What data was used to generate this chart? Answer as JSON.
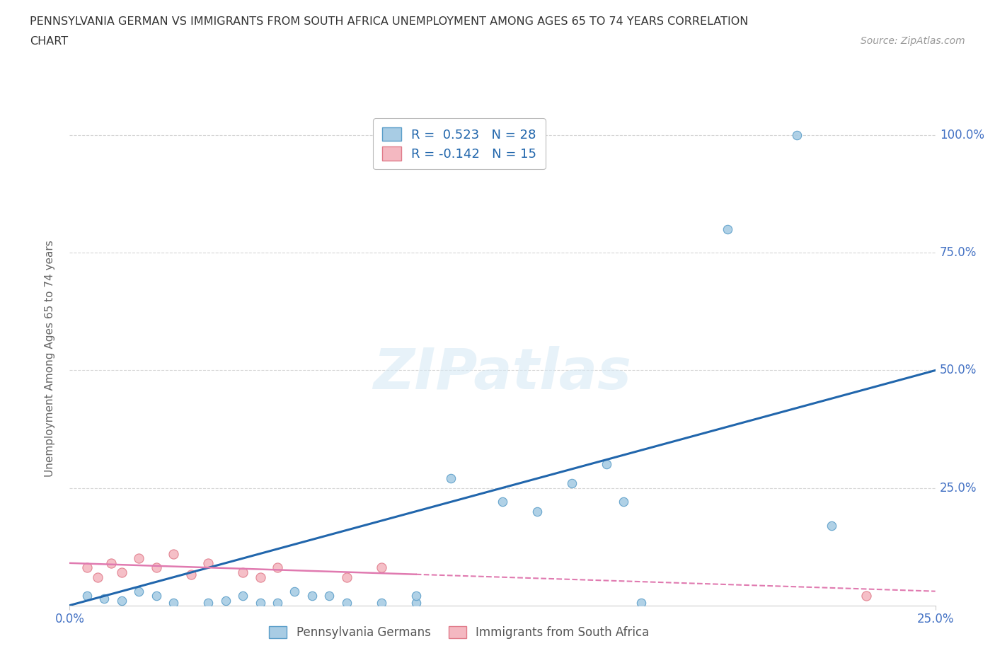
{
  "title_line1": "PENNSYLVANIA GERMAN VS IMMIGRANTS FROM SOUTH AFRICA UNEMPLOYMENT AMONG AGES 65 TO 74 YEARS CORRELATION",
  "title_line2": "CHART",
  "source": "Source: ZipAtlas.com",
  "ylabel": "Unemployment Among Ages 65 to 74 years",
  "xlim": [
    0.0,
    0.25
  ],
  "ylim": [
    0.0,
    1.05
  ],
  "ytick_labels": [
    "25.0%",
    "50.0%",
    "75.0%",
    "100.0%"
  ],
  "ytick_values": [
    0.25,
    0.5,
    0.75,
    1.0
  ],
  "watermark": "ZIPatlas",
  "legend_r1": "R =  0.523   N = 28",
  "legend_r2": "R = -0.142   N = 15",
  "blue_color": "#a8cce4",
  "blue_edge_color": "#5b9ec9",
  "pink_color": "#f4b8c1",
  "pink_edge_color": "#e07b8a",
  "blue_line_color": "#2166ac",
  "pink_line_color": "#e07ab0",
  "bg_color": "#ffffff",
  "grid_color": "#cccccc",
  "title_color": "#333333",
  "axis_tick_color": "#4472c4",
  "blue_points": [
    [
      0.005,
      0.02
    ],
    [
      0.01,
      0.015
    ],
    [
      0.015,
      0.01
    ],
    [
      0.02,
      0.03
    ],
    [
      0.025,
      0.02
    ],
    [
      0.03,
      0.005
    ],
    [
      0.04,
      0.005
    ],
    [
      0.045,
      0.01
    ],
    [
      0.05,
      0.02
    ],
    [
      0.055,
      0.005
    ],
    [
      0.06,
      0.005
    ],
    [
      0.065,
      0.03
    ],
    [
      0.07,
      0.02
    ],
    [
      0.075,
      0.02
    ],
    [
      0.08,
      0.005
    ],
    [
      0.09,
      0.005
    ],
    [
      0.1,
      0.005
    ],
    [
      0.1,
      0.02
    ],
    [
      0.11,
      0.27
    ],
    [
      0.125,
      0.22
    ],
    [
      0.135,
      0.2
    ],
    [
      0.145,
      0.26
    ],
    [
      0.155,
      0.3
    ],
    [
      0.16,
      0.22
    ],
    [
      0.165,
      0.005
    ],
    [
      0.19,
      0.8
    ],
    [
      0.21,
      1.0
    ],
    [
      0.22,
      0.17
    ]
  ],
  "pink_points": [
    [
      0.005,
      0.08
    ],
    [
      0.008,
      0.06
    ],
    [
      0.012,
      0.09
    ],
    [
      0.015,
      0.07
    ],
    [
      0.02,
      0.1
    ],
    [
      0.025,
      0.08
    ],
    [
      0.03,
      0.11
    ],
    [
      0.035,
      0.065
    ],
    [
      0.04,
      0.09
    ],
    [
      0.05,
      0.07
    ],
    [
      0.055,
      0.06
    ],
    [
      0.06,
      0.08
    ],
    [
      0.08,
      0.06
    ],
    [
      0.09,
      0.08
    ],
    [
      0.23,
      0.02
    ]
  ],
  "blue_trend_x": [
    0.0,
    0.25
  ],
  "blue_trend_y": [
    0.0,
    0.5
  ],
  "pink_trend_x": [
    0.0,
    0.25
  ],
  "pink_trend_y": [
    0.09,
    0.03
  ],
  "blue_marker_size": 80,
  "pink_marker_size": 90
}
